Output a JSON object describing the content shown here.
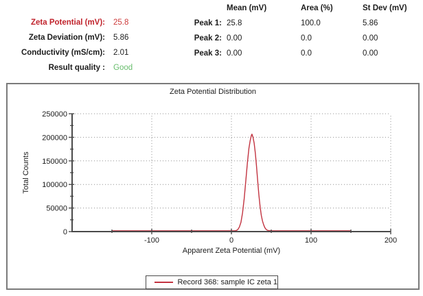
{
  "colors": {
    "text": "#1c1c1c",
    "summary_label_red": "#c0232c",
    "summary_value_red": "#cd3a3a",
    "good_green": "#67bd6c",
    "series_red": "#c23340",
    "grid": "#909090",
    "axis": "#4a4a4a",
    "chart_border": "#7a7a7a",
    "legend_border": "#4a4a4a"
  },
  "summary": {
    "rows": [
      {
        "label": "Zeta Potential (mV):",
        "value": "25.8"
      },
      {
        "label": "Zeta Deviation (mV):",
        "value": "5.86"
      },
      {
        "label": "Conductivity (mS/cm):",
        "value": "2.01"
      },
      {
        "label": "Result quality :",
        "value": "Good"
      }
    ]
  },
  "peaks_table": {
    "headers": [
      "Mean (mV)",
      "Area (%)",
      "St Dev (mV)"
    ],
    "rows": [
      {
        "label": "Peak 1:",
        "mean": "25.8",
        "area": "100.0",
        "stdev": "5.86"
      },
      {
        "label": "Peak 2:",
        "mean": "0.00",
        "area": "0.0",
        "stdev": "0.00"
      },
      {
        "label": "Peak 3:",
        "mean": "0.00",
        "area": "0.0",
        "stdev": "0.00"
      }
    ]
  },
  "chart_data": {
    "type": "line",
    "title": "Zeta Potential Distribution",
    "xlabel": "Apparent Zeta Potential (mV)",
    "ylabel": "Total Counts",
    "xlim": [
      -200,
      200
    ],
    "ylim": [
      0,
      250000
    ],
    "x_major_ticks": [
      -100,
      0,
      100,
      200
    ],
    "x_minor_ticks": [
      -150,
      -50,
      50,
      150
    ],
    "y_major_ticks": [
      0,
      50000,
      100000,
      150000,
      200000,
      250000
    ],
    "y_minor_step": 25000,
    "grid": "dotted",
    "legend_position": "bottom-center",
    "series": [
      {
        "name": "Record 368: sample IC zeta 1",
        "color": "#c23340",
        "peak_mean_mV": 25.8,
        "peak_max_counts": 205000,
        "points": [
          [
            -150,
            0
          ],
          [
            -100,
            0
          ],
          [
            -50,
            0
          ],
          [
            0,
            0
          ],
          [
            4,
            0
          ],
          [
            6,
            600
          ],
          [
            8,
            2500
          ],
          [
            10,
            8000
          ],
          [
            12,
            18000
          ],
          [
            14,
            38000
          ],
          [
            16,
            68000
          ],
          [
            18,
            105000
          ],
          [
            20,
            143000
          ],
          [
            22,
            175000
          ],
          [
            23.5,
            191000
          ],
          [
            25,
            202000
          ],
          [
            25.8,
            205000
          ],
          [
            27,
            199000
          ],
          [
            28.5,
            186000
          ],
          [
            30,
            165000
          ],
          [
            31.5,
            138000
          ],
          [
            33,
            105000
          ],
          [
            34.5,
            76000
          ],
          [
            36,
            51000
          ],
          [
            37.5,
            33000
          ],
          [
            39,
            21000
          ],
          [
            40.5,
            12500
          ],
          [
            42,
            6500
          ],
          [
            44,
            2200
          ],
          [
            46,
            600
          ],
          [
            49,
            100
          ],
          [
            53,
            0
          ],
          [
            100,
            0
          ],
          [
            150,
            0
          ]
        ]
      }
    ]
  }
}
